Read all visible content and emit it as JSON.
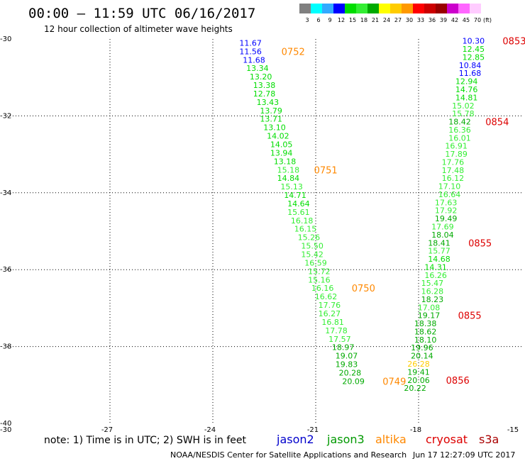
{
  "header": {
    "title": "00:00 – 11:59 UTC 06/16/2017",
    "subtitle": "12 hour collection of altimeter wave heights"
  },
  "colorbar": {
    "labels": [
      "3",
      "6",
      "9",
      "12",
      "15",
      "18",
      "21",
      "24",
      "27",
      "30",
      "33",
      "36",
      "39",
      "42",
      "45",
      "70"
    ],
    "unit": "(ft)",
    "colors": [
      "#808080",
      "#00ffff",
      "#33aaff",
      "#0000ff",
      "#00dd00",
      "#33ee33",
      "#00aa00",
      "#ffff00",
      "#ffcc00",
      "#ff9900",
      "#ff0000",
      "#cc0000",
      "#990000",
      "#cc00cc",
      "#ff66ff",
      "#ffccff"
    ]
  },
  "footer": {
    "note": "note: 1) Time is in UTC; 2) SWH is in feet",
    "credit": "NOAA/NESDIS Center for Satellite Applications and Research",
    "timestamp": "Jun 17 12:27:09 UTC 2017"
  },
  "satellites": [
    {
      "name": "jason2",
      "color": "#0000cc"
    },
    {
      "name": "jason3",
      "color": "#009900"
    },
    {
      "name": "altika",
      "color": "#ff8800"
    },
    {
      "name": "cryosat",
      "color": "#dd0000"
    },
    {
      "name": "s3a",
      "color": "#aa0000"
    }
  ],
  "chart_data": {
    "type": "scatter",
    "xlim": [
      -30,
      -15
    ],
    "ylim": [
      -40,
      -30
    ],
    "x_ticks": [
      "-30",
      "-27",
      "-24",
      "-21",
      "-18",
      "-15"
    ],
    "y_ticks": [
      "-30",
      "-32",
      "-34",
      "-36",
      "-38",
      "-40"
    ],
    "grid": true,
    "color_scale": {
      "thresholds": [
        3,
        6,
        9,
        12,
        15,
        18,
        21,
        24,
        27,
        30,
        33,
        36,
        39,
        42,
        45,
        70
      ],
      "colors": [
        "#808080",
        "#00ffff",
        "#33aaff",
        "#0000ff",
        "#00dd00",
        "#33ee33",
        "#00aa00",
        "#ffff00",
        "#ffcc00",
        "#ff9900",
        "#ff0000",
        "#cc0000",
        "#990000",
        "#cc00cc",
        "#ff66ff",
        "#ffccff"
      ]
    },
    "tracks": [
      {
        "values": [
          {
            "lon": -22.9,
            "lat": -30.1,
            "v": "11.67"
          },
          {
            "lon": -22.9,
            "lat": -30.32,
            "v": "11.56"
          },
          {
            "lon": -22.8,
            "lat": -30.54,
            "v": "11.68"
          },
          {
            "lon": -22.7,
            "lat": -30.76,
            "v": "13.34"
          },
          {
            "lon": -22.6,
            "lat": -30.98,
            "v": "13.20"
          },
          {
            "lon": -22.5,
            "lat": -31.2,
            "v": "13.38"
          },
          {
            "lon": -22.5,
            "lat": -31.42,
            "v": "12.78"
          },
          {
            "lon": -22.4,
            "lat": -31.64,
            "v": "13.43"
          },
          {
            "lon": -22.3,
            "lat": -31.86,
            "v": "13.79"
          },
          {
            "lon": -22.3,
            "lat": -32.08,
            "v": "13.71"
          },
          {
            "lon": -22.2,
            "lat": -32.3,
            "v": "13.10"
          },
          {
            "lon": -22.1,
            "lat": -32.52,
            "v": "14.02"
          },
          {
            "lon": -22.0,
            "lat": -32.74,
            "v": "14.05"
          },
          {
            "lon": -22.0,
            "lat": -32.96,
            "v": "13.94"
          },
          {
            "lon": -21.9,
            "lat": -33.18,
            "v": "13.18"
          },
          {
            "lon": -21.8,
            "lat": -33.4,
            "v": "15.18"
          },
          {
            "lon": -21.8,
            "lat": -33.62,
            "v": "14.84"
          },
          {
            "lon": -21.7,
            "lat": -33.84,
            "v": "15.13"
          },
          {
            "lon": -21.6,
            "lat": -34.06,
            "v": "14.71"
          },
          {
            "lon": -21.5,
            "lat": -34.28,
            "v": "14.64"
          },
          {
            "lon": -21.5,
            "lat": -34.5,
            "v": "15.61"
          },
          {
            "lon": -21.4,
            "lat": -34.72,
            "v": "16.18"
          },
          {
            "lon": -21.3,
            "lat": -34.94,
            "v": "16.15"
          },
          {
            "lon": -21.2,
            "lat": -35.16,
            "v": "15.26"
          },
          {
            "lon": -21.1,
            "lat": -35.38,
            "v": "15.50"
          },
          {
            "lon": -21.1,
            "lat": -35.6,
            "v": "15.42"
          },
          {
            "lon": -21.0,
            "lat": -35.82,
            "v": "16.59"
          },
          {
            "lon": -20.9,
            "lat": -36.04,
            "v": "15.72"
          },
          {
            "lon": -20.9,
            "lat": -36.26,
            "v": "15.16"
          },
          {
            "lon": -20.8,
            "lat": -36.48,
            "v": "16.16"
          },
          {
            "lon": -20.7,
            "lat": -36.7,
            "v": "16.62"
          },
          {
            "lon": -20.6,
            "lat": -36.92,
            "v": "17.76"
          },
          {
            "lon": -20.6,
            "lat": -37.14,
            "v": "16.27"
          },
          {
            "lon": -20.5,
            "lat": -37.36,
            "v": "16.81"
          },
          {
            "lon": -20.4,
            "lat": -37.58,
            "v": "17.78"
          },
          {
            "lon": -20.3,
            "lat": -37.8,
            "v": "17.57"
          },
          {
            "lon": -20.2,
            "lat": -38.02,
            "v": "18.97"
          },
          {
            "lon": -20.1,
            "lat": -38.24,
            "v": "19.07"
          },
          {
            "lon": -20.1,
            "lat": -38.46,
            "v": "19.83"
          },
          {
            "lon": -20.0,
            "lat": -38.68,
            "v": "20.28"
          },
          {
            "lon": -19.9,
            "lat": -38.9,
            "v": "20.09"
          }
        ]
      },
      {
        "values": [
          {
            "lon": -16.4,
            "lat": -30.05,
            "v": "10.30"
          },
          {
            "lon": -16.4,
            "lat": -30.26,
            "v": "12.45"
          },
          {
            "lon": -16.4,
            "lat": -30.47,
            "v": "12.85"
          },
          {
            "lon": -16.5,
            "lat": -30.68,
            "v": "10.84"
          },
          {
            "lon": -16.5,
            "lat": -30.89,
            "v": "11.68"
          },
          {
            "lon": -16.6,
            "lat": -31.1,
            "v": "12.94"
          },
          {
            "lon": -16.6,
            "lat": -31.31,
            "v": "14.76"
          },
          {
            "lon": -16.6,
            "lat": -31.52,
            "v": "14.81"
          },
          {
            "lon": -16.7,
            "lat": -31.73,
            "v": "15.02"
          },
          {
            "lon": -16.7,
            "lat": -31.94,
            "v": "15.78"
          },
          {
            "lon": -16.8,
            "lat": -32.15,
            "v": "18.42"
          },
          {
            "lon": -16.8,
            "lat": -32.36,
            "v": "16.36"
          },
          {
            "lon": -16.8,
            "lat": -32.57,
            "v": "16.01"
          },
          {
            "lon": -16.9,
            "lat": -32.78,
            "v": "16.91"
          },
          {
            "lon": -16.9,
            "lat": -32.99,
            "v": "17.89"
          },
          {
            "lon": -17.0,
            "lat": -33.2,
            "v": "17.76"
          },
          {
            "lon": -17.0,
            "lat": -33.41,
            "v": "17.48"
          },
          {
            "lon": -17.0,
            "lat": -33.62,
            "v": "16.12"
          },
          {
            "lon": -17.1,
            "lat": -33.83,
            "v": "17.10"
          },
          {
            "lon": -17.1,
            "lat": -34.04,
            "v": "16.64"
          },
          {
            "lon": -17.2,
            "lat": -34.25,
            "v": "17.63"
          },
          {
            "lon": -17.2,
            "lat": -34.46,
            "v": "17.92"
          },
          {
            "lon": -17.2,
            "lat": -34.67,
            "v": "19.49"
          },
          {
            "lon": -17.3,
            "lat": -34.88,
            "v": "17.69"
          },
          {
            "lon": -17.3,
            "lat": -35.09,
            "v": "18.04"
          },
          {
            "lon": -17.4,
            "lat": -35.3,
            "v": "18.41"
          },
          {
            "lon": -17.4,
            "lat": -35.51,
            "v": "15.77"
          },
          {
            "lon": -17.4,
            "lat": -35.72,
            "v": "14.68"
          },
          {
            "lon": -17.5,
            "lat": -35.93,
            "v": "14.31"
          },
          {
            "lon": -17.5,
            "lat": -36.14,
            "v": "16.26"
          },
          {
            "lon": -17.6,
            "lat": -36.35,
            "v": "15.47"
          },
          {
            "lon": -17.6,
            "lat": -36.56,
            "v": "16.28"
          },
          {
            "lon": -17.6,
            "lat": -36.77,
            "v": "18.23"
          },
          {
            "lon": -17.7,
            "lat": -36.98,
            "v": "17.08"
          },
          {
            "lon": -17.7,
            "lat": -37.19,
            "v": "19.17"
          },
          {
            "lon": -17.8,
            "lat": -37.4,
            "v": "18.38"
          },
          {
            "lon": -17.8,
            "lat": -37.61,
            "v": "18.62"
          },
          {
            "lon": -17.8,
            "lat": -37.82,
            "v": "18.10"
          },
          {
            "lon": -17.9,
            "lat": -38.03,
            "v": "19.96"
          },
          {
            "lon": -17.9,
            "lat": -38.24,
            "v": "20.14"
          },
          {
            "lon": -18.0,
            "lat": -38.45,
            "v": "26.28"
          },
          {
            "lon": -18.0,
            "lat": -38.66,
            "v": "19.41"
          },
          {
            "lon": -18.0,
            "lat": -38.87,
            "v": "20.06"
          },
          {
            "lon": -18.1,
            "lat": -39.08,
            "v": "20.22"
          }
        ]
      }
    ],
    "time_labels": [
      {
        "text": "0752",
        "lon": -22.0,
        "lat": -30.32,
        "color": "#ff8800"
      },
      {
        "text": "0751",
        "lon": -21.05,
        "lat": -33.4,
        "color": "#ff8800"
      },
      {
        "text": "0750",
        "lon": -19.95,
        "lat": -36.48,
        "color": "#ff8800"
      },
      {
        "text": "0749",
        "lon": -19.05,
        "lat": -38.9,
        "color": "#ff8800"
      },
      {
        "text": "0853",
        "lon": -15.55,
        "lat": -30.05,
        "color": "#dd0000"
      },
      {
        "text": "0854",
        "lon": -16.05,
        "lat": -32.15,
        "color": "#dd0000"
      },
      {
        "text": "0855",
        "lon": -16.55,
        "lat": -35.3,
        "color": "#dd0000"
      },
      {
        "text": "0855",
        "lon": -16.85,
        "lat": -37.19,
        "color": "#dd0000"
      },
      {
        "text": "0856",
        "lon": -17.2,
        "lat": -38.87,
        "color": "#dd0000"
      }
    ]
  }
}
